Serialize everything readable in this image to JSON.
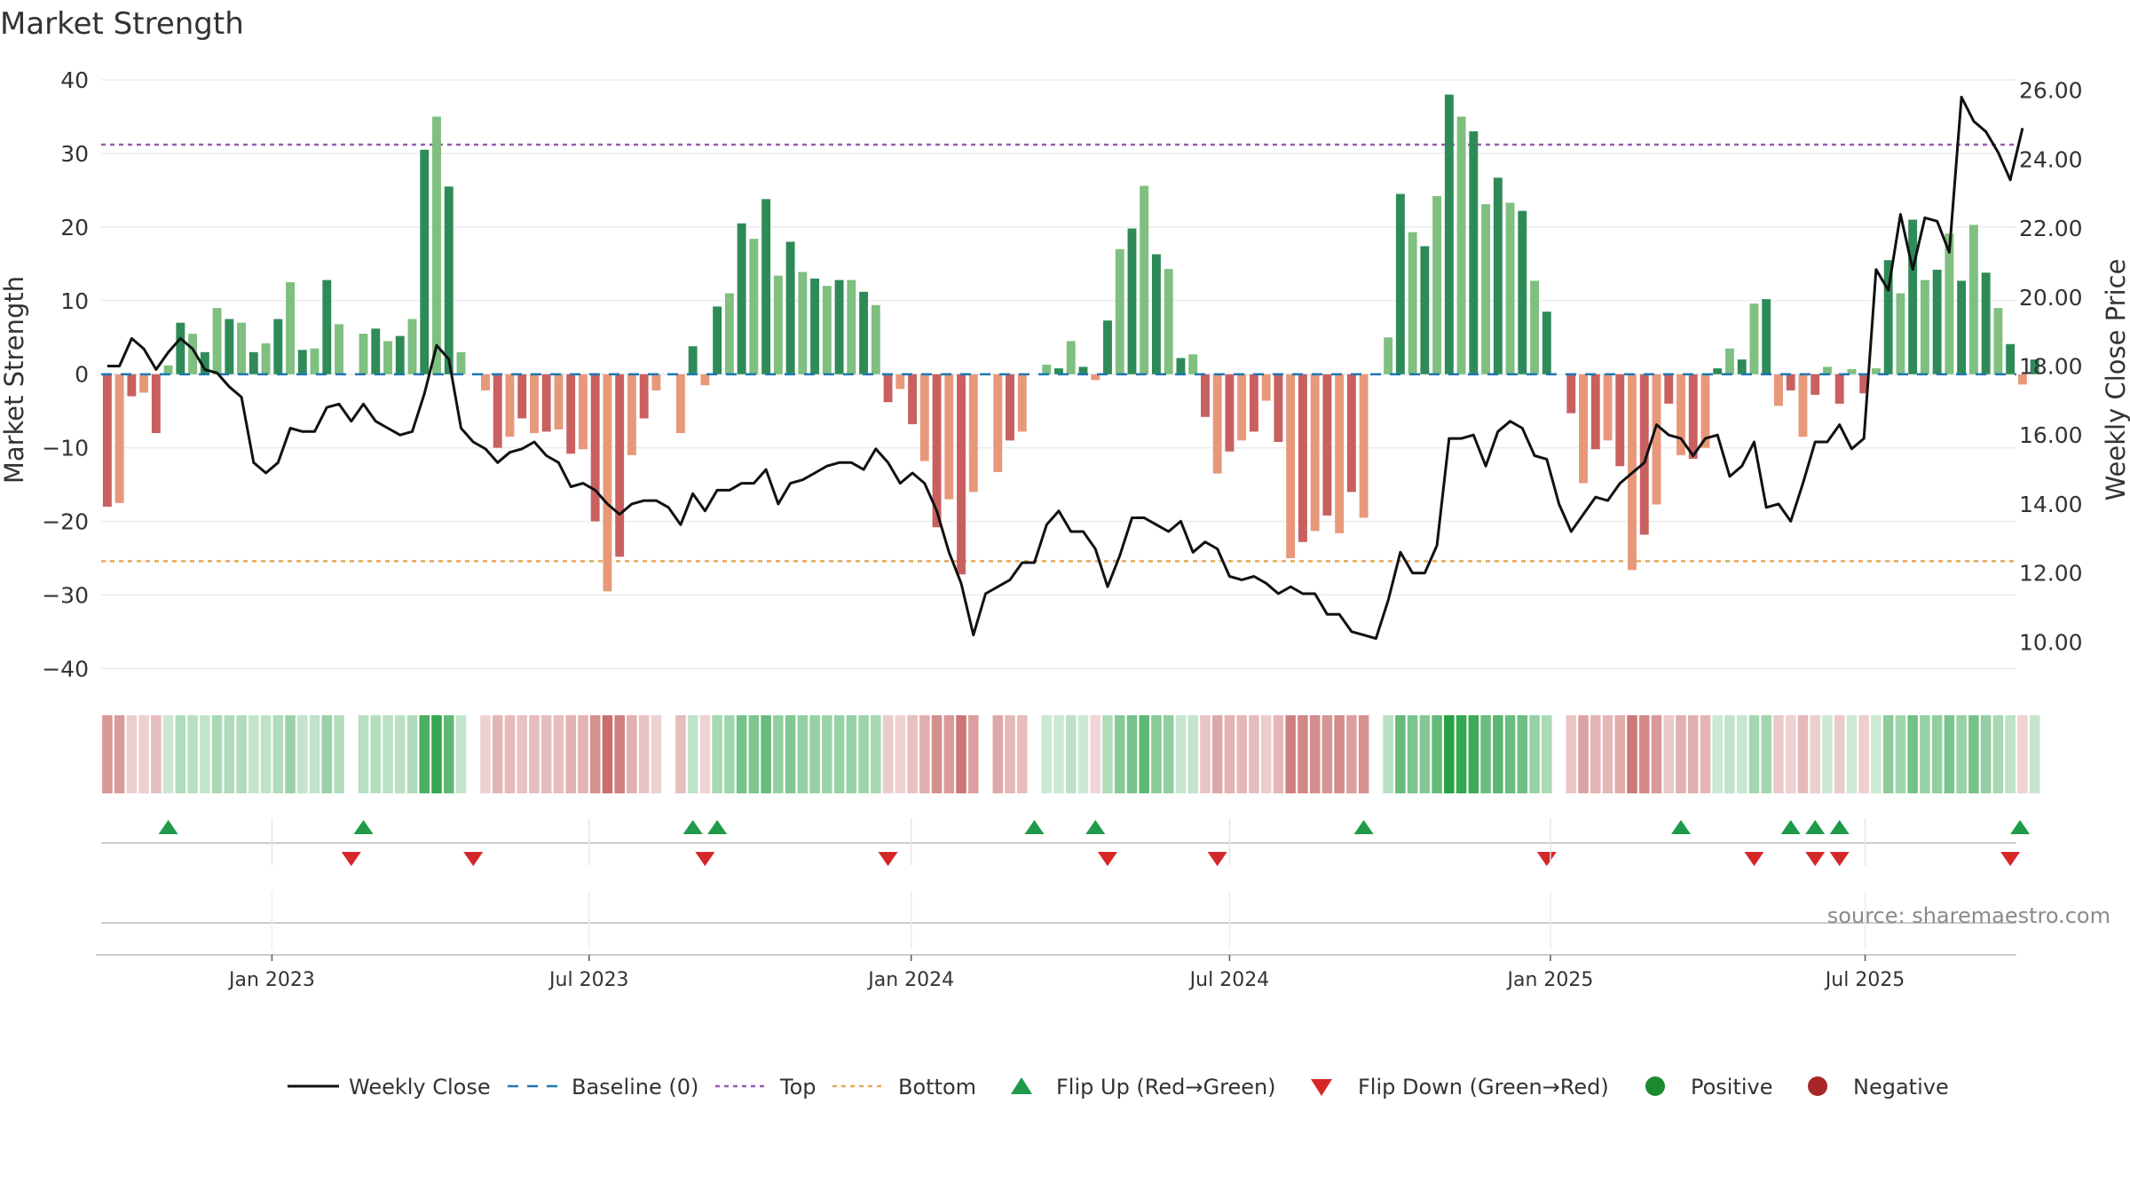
{
  "title": "Market Strength",
  "source": "source: sharemaestro.com",
  "colors": {
    "green_dark": "#2e8b57",
    "green_light": "#7fbf7f",
    "red_dark": "#c96060",
    "red_light": "#e8987a",
    "line": "#111111",
    "baseline": "#1f77b4",
    "top": "#9b59b6",
    "bottom": "#e8a85a",
    "flip_up": "#1e9a4a",
    "flip_down": "#d62728",
    "positive": "#1e8a2e",
    "negative": "#a82626"
  },
  "chart_data": {
    "type": "bar",
    "title": "Market Strength",
    "ylabel_left": "Market Strength",
    "ylabel_right": "Weekly Close Price",
    "left_ylim": [
      -42,
      40
    ],
    "right_ylim": [
      8.8,
      26.3
    ],
    "left_ticks": [
      40,
      30,
      20,
      10,
      0,
      -10,
      -20,
      -30,
      -40
    ],
    "left_tick_labels": [
      "40",
      "30",
      "20",
      "10",
      "0",
      "−10",
      "−20",
      "−30",
      "−40"
    ],
    "right_ticks": [
      26,
      24,
      22,
      20,
      18,
      16,
      14,
      12,
      10
    ],
    "right_tick_labels": [
      "26.00",
      "24.00",
      "22.00",
      "20.00",
      "18.00",
      "16.00",
      "14.00",
      "12.00",
      "10.00"
    ],
    "x_start_date": "2022-09-09",
    "week_count": 157,
    "x_tick_labels": [
      {
        "label": "Jan 2023",
        "week": 14
      },
      {
        "label": "Jul 2023",
        "week": 40
      },
      {
        "label": "Jan 2024",
        "week": 66.4
      },
      {
        "label": "Jul 2024",
        "week": 92.5
      },
      {
        "label": "Jan 2025",
        "week": 118.8
      },
      {
        "label": "Jul 2025",
        "week": 144.6
      }
    ],
    "top_threshold": 31.2,
    "bottom_threshold": -25.4,
    "baseline": 0,
    "strength": [
      -18,
      -17.5,
      -3,
      -2.5,
      -8,
      1.2,
      7,
      5.5,
      3,
      9,
      7.5,
      7,
      3,
      4.2,
      7.5,
      12.5,
      3.3,
      3.5,
      12.8,
      6.8,
      0,
      5.5,
      6.2,
      4.5,
      5.2,
      7.5,
      30.5,
      35,
      25.5,
      3,
      0,
      -2.2,
      -10,
      -8.5,
      -6,
      -8,
      -7.8,
      -7.5,
      -10.8,
      -10.2,
      -20,
      -29.5,
      -24.8,
      -11,
      -6,
      -2.2,
      0,
      -8,
      3.8,
      -1.5,
      9.2,
      11,
      20.5,
      18.4,
      23.8,
      13.4,
      18,
      13.9,
      13,
      12,
      12.8,
      12.8,
      11.2,
      9.4,
      -3.8,
      -2,
      -6.8,
      -11.8,
      -20.8,
      -17,
      -27.2,
      -16,
      0,
      -13.3,
      -9,
      -7.8,
      0,
      1.3,
      0.8,
      4.5,
      1,
      -0.8,
      7.3,
      17,
      19.8,
      25.6,
      16.3,
      14.3,
      2.2,
      2.7,
      -5.8,
      -13.5,
      -10.5,
      -9,
      -7.8,
      -3.6,
      -9.2,
      -25,
      -22.8,
      -21.3,
      -19.2,
      -21.6,
      -16,
      -19.5,
      0,
      5,
      24.5,
      19.3,
      17.4,
      24.2,
      38,
      35,
      33,
      23.1,
      26.7,
      23.3,
      22.2,
      12.7,
      8.5,
      0,
      -5.3,
      -14.8,
      -10.2,
      -9,
      -12.5,
      -26.6,
      -21.8,
      -17.7,
      -4,
      -11,
      -11.5,
      -10,
      0.8,
      3.5,
      2,
      9.6,
      10.2,
      -4.3,
      -2.2,
      -8.5,
      -2.8,
      1,
      -4,
      0.7,
      -2.6,
      0.8,
      15.5,
      11,
      21,
      12.8,
      14.2,
      19.1,
      12.7,
      20.3,
      13.8,
      9,
      4.1,
      -1.4,
      2
    ],
    "close": [
      18,
      18,
      18.8,
      18.5,
      17.9,
      18.4,
      18.8,
      18.5,
      17.9,
      17.8,
      17.4,
      17.1,
      15.2,
      14.9,
      15.2,
      16.2,
      16.1,
      16.1,
      16.8,
      16.9,
      16.4,
      16.9,
      16.4,
      16.2,
      16,
      16.1,
      17.2,
      18.6,
      18.2,
      16.2,
      15.8,
      15.6,
      15.2,
      15.5,
      15.6,
      15.8,
      15.4,
      15.2,
      14.5,
      14.6,
      14.4,
      14,
      13.7,
      14,
      14.1,
      14.1,
      13.9,
      13.4,
      14.3,
      13.8,
      14.4,
      14.4,
      14.6,
      14.6,
      15,
      14,
      14.6,
      14.7,
      14.9,
      15.1,
      15.2,
      15.2,
      15,
      15.6,
      15.2,
      14.6,
      14.9,
      14.6,
      13.8,
      12.6,
      11.7,
      10.2,
      11.4,
      11.6,
      11.8,
      12.3,
      12.3,
      13.4,
      13.8,
      13.2,
      13.2,
      12.7,
      11.6,
      12.5,
      13.6,
      13.6,
      13.4,
      13.2,
      13.5,
      12.6,
      12.9,
      12.7,
      11.9,
      11.8,
      11.9,
      11.7,
      11.4,
      11.6,
      11.4,
      11.4,
      10.8,
      10.8,
      10.3,
      10.2,
      10.1,
      11.2,
      12.6,
      12,
      12,
      12.8,
      15.9,
      15.9,
      16,
      15.1,
      16.1,
      16.4,
      16.2,
      15.4,
      15.3,
      14,
      13.2,
      13.7,
      14.2,
      14.1,
      14.6,
      14.9,
      15.2,
      16.3,
      16,
      15.9,
      15.4,
      15.9,
      16,
      14.8,
      15.1,
      15.8,
      13.9,
      14,
      13.5,
      14.6,
      15.8,
      15.8,
      16.3,
      15.6,
      15.9,
      20.8,
      20.2,
      22.4,
      20.8,
      22.3,
      22.2,
      21.3,
      25.8,
      25.1,
      24.8,
      24.2,
      23.4,
      24.9
    ],
    "flip_up_weeks": [
      5,
      21,
      48,
      50,
      76,
      81,
      103,
      129,
      138,
      140,
      142,
      156.8
    ],
    "flip_down_weeks": [
      20,
      30,
      49,
      64,
      82,
      91,
      118,
      135,
      140,
      142,
      156
    ]
  },
  "legend": [
    {
      "key": "weekly_close",
      "label": "Weekly Close"
    },
    {
      "key": "baseline",
      "label": "Baseline (0)"
    },
    {
      "key": "top",
      "label": "Top"
    },
    {
      "key": "bottom",
      "label": "Bottom"
    },
    {
      "key": "flip_up",
      "label": "Flip Up (Red→Green)"
    },
    {
      "key": "flip_down",
      "label": "Flip Down (Green→Red)"
    },
    {
      "key": "positive",
      "label": "Positive"
    },
    {
      "key": "negative",
      "label": "Negative"
    }
  ]
}
